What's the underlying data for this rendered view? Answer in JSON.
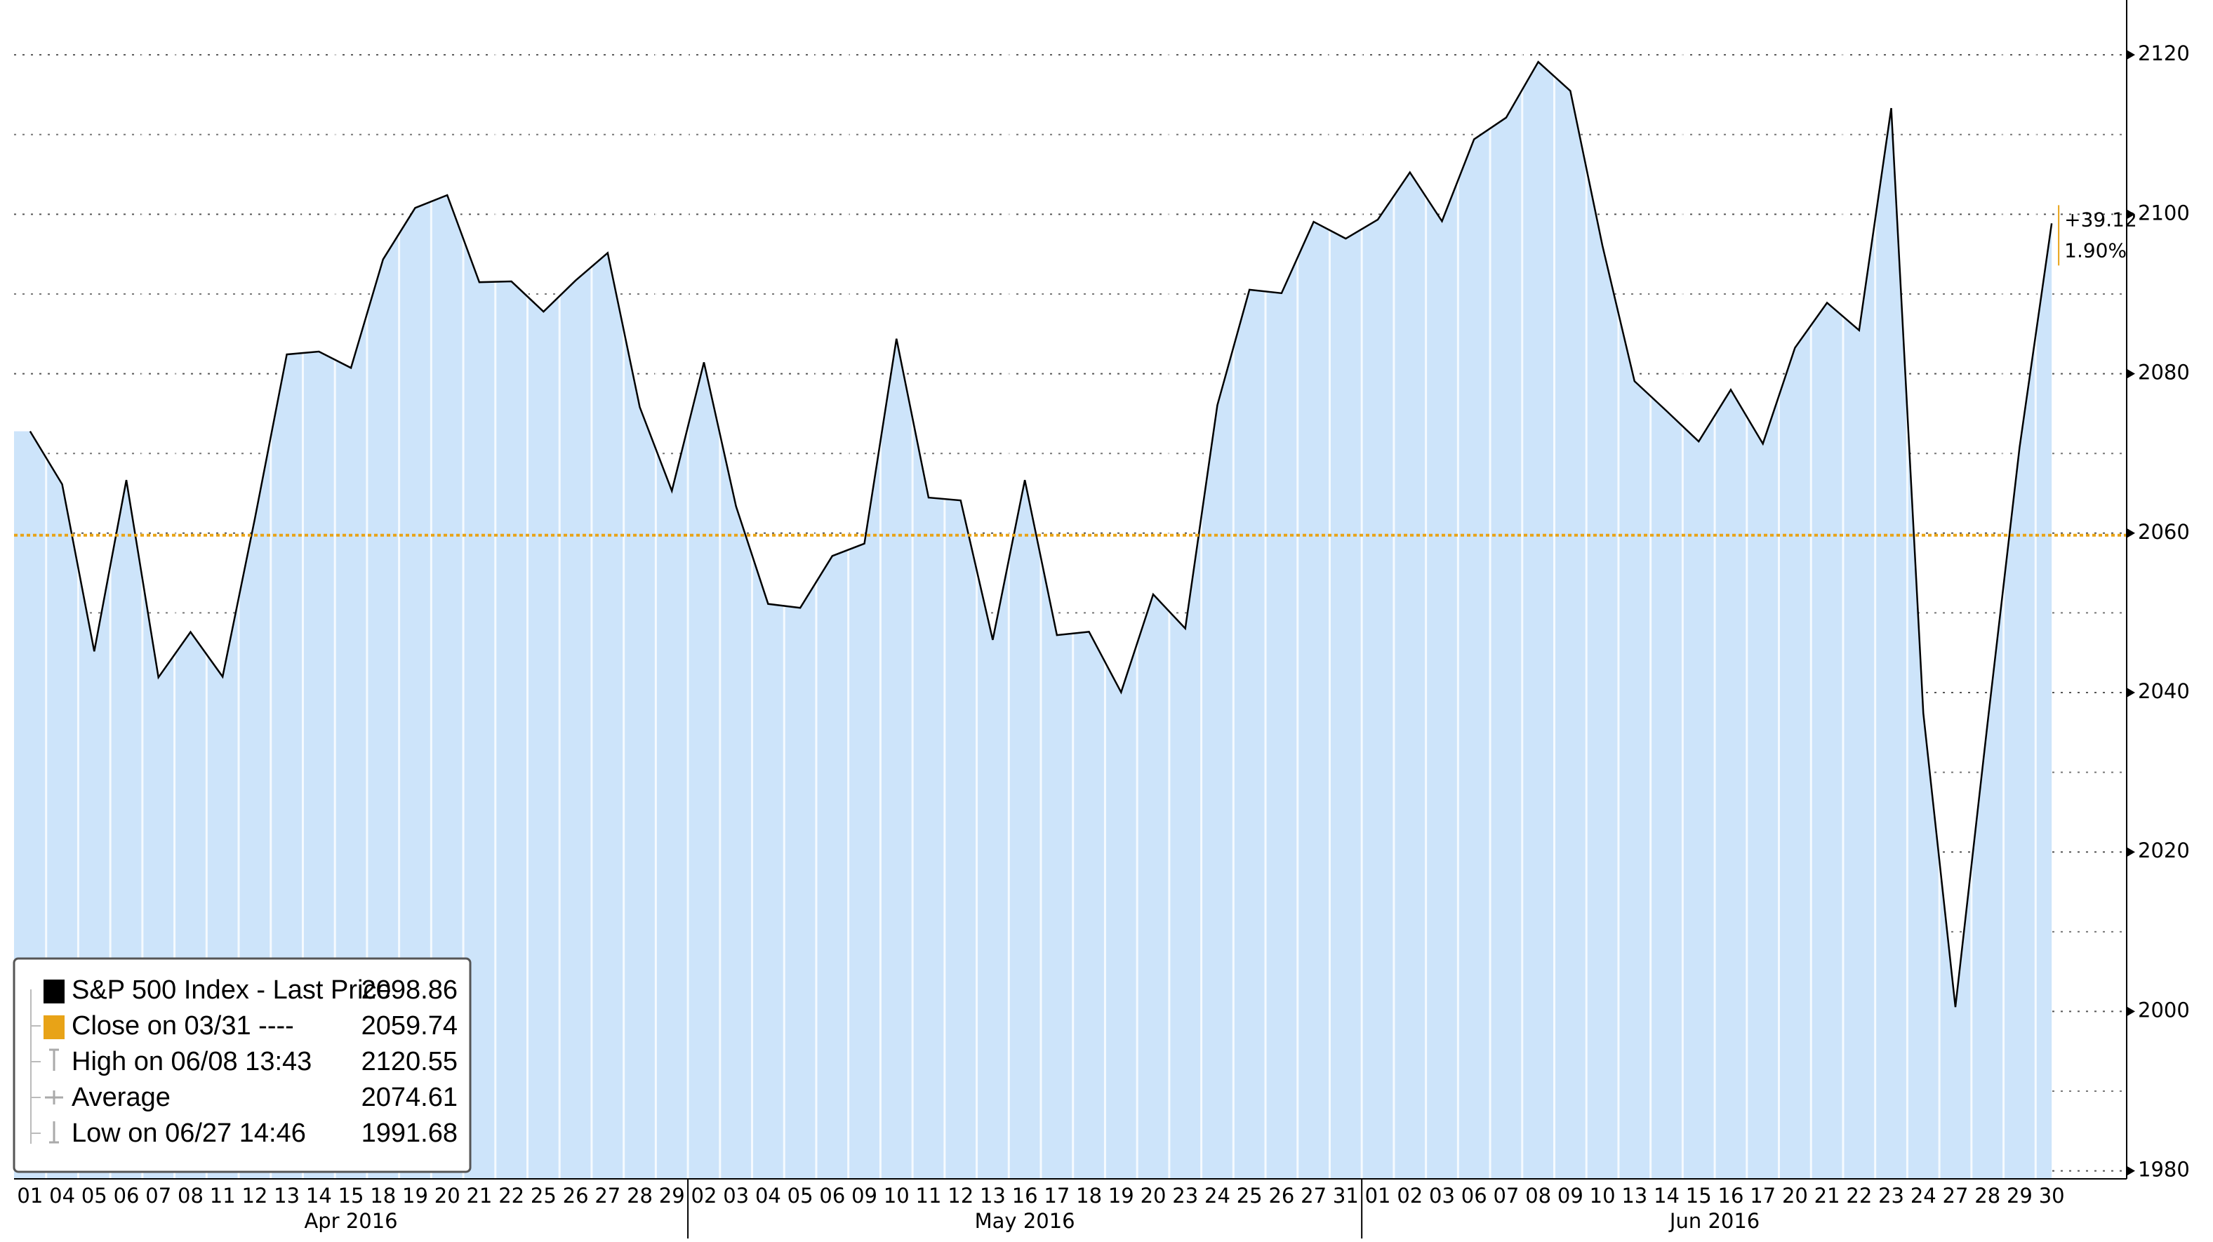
{
  "chart_data": {
    "type": "line",
    "categories": [
      "01",
      "04",
      "05",
      "06",
      "07",
      "08",
      "11",
      "12",
      "13",
      "14",
      "15",
      "18",
      "19",
      "20",
      "21",
      "22",
      "25",
      "26",
      "27",
      "28",
      "29",
      "02",
      "03",
      "04",
      "05",
      "06",
      "09",
      "10",
      "11",
      "12",
      "13",
      "16",
      "17",
      "18",
      "19",
      "20",
      "23",
      "24",
      "25",
      "26",
      "27",
      "31",
      "01",
      "02",
      "03",
      "06",
      "07",
      "08",
      "09",
      "10",
      "13",
      "14",
      "15",
      "16",
      "17",
      "20",
      "21",
      "22",
      "23",
      "24",
      "27",
      "28",
      "29",
      "30"
    ],
    "month_labels": [
      "Apr 2016",
      "May 2016",
      "Jun 2016"
    ],
    "series": [
      {
        "name": "S&P 500 Index - Last Price",
        "color": "#000000",
        "fill": "#cde4fa",
        "values": [
          2072.78,
          2066.13,
          2045.17,
          2066.66,
          2041.91,
          2047.6,
          2041.99,
          2061.72,
          2082.42,
          2082.78,
          2080.73,
          2094.34,
          2100.8,
          2102.4,
          2091.48,
          2091.58,
          2087.79,
          2091.7,
          2095.15,
          2075.81,
          2065.3,
          2081.43,
          2063.37,
          2051.12,
          2050.63,
          2057.14,
          2058.69,
          2084.39,
          2064.46,
          2064.11,
          2046.61,
          2066.66,
          2047.21,
          2047.63,
          2040.04,
          2052.32,
          2048.04,
          2076.06,
          2090.54,
          2090.1,
          2099.06,
          2096.95,
          2099.33,
          2105.26,
          2099.13,
          2109.41,
          2112.13,
          2119.12,
          2115.48,
          2096.07,
          2079.06,
          2075.32,
          2071.5,
          2077.99,
          2071.22,
          2083.25,
          2088.9,
          2085.45,
          2113.32,
          2037.41,
          2000.54,
          2036.09,
          2070.77,
          2098.86
        ]
      }
    ],
    "reference": {
      "label": "Close on 03/31 ----",
      "value": 2059.74,
      "color": "#e8a317"
    },
    "stats": [
      {
        "label": "High on 06/08 13:43",
        "value": 2120.55
      },
      {
        "label": "Average",
        "value": 2074.61
      },
      {
        "label": "Low on 06/27 14:46",
        "value": 1991.68
      }
    ],
    "last_value": 2098.86,
    "annotations": [
      "+39.12",
      "1.90%"
    ],
    "ylim": [
      1979,
      2126
    ],
    "yticks": [
      1980,
      2000,
      2020,
      2040,
      2060,
      2080,
      2100,
      2120
    ],
    "minor_yticks": [
      1990,
      2010,
      2030,
      2050,
      2070,
      2090,
      2110
    ],
    "grid": true
  }
}
